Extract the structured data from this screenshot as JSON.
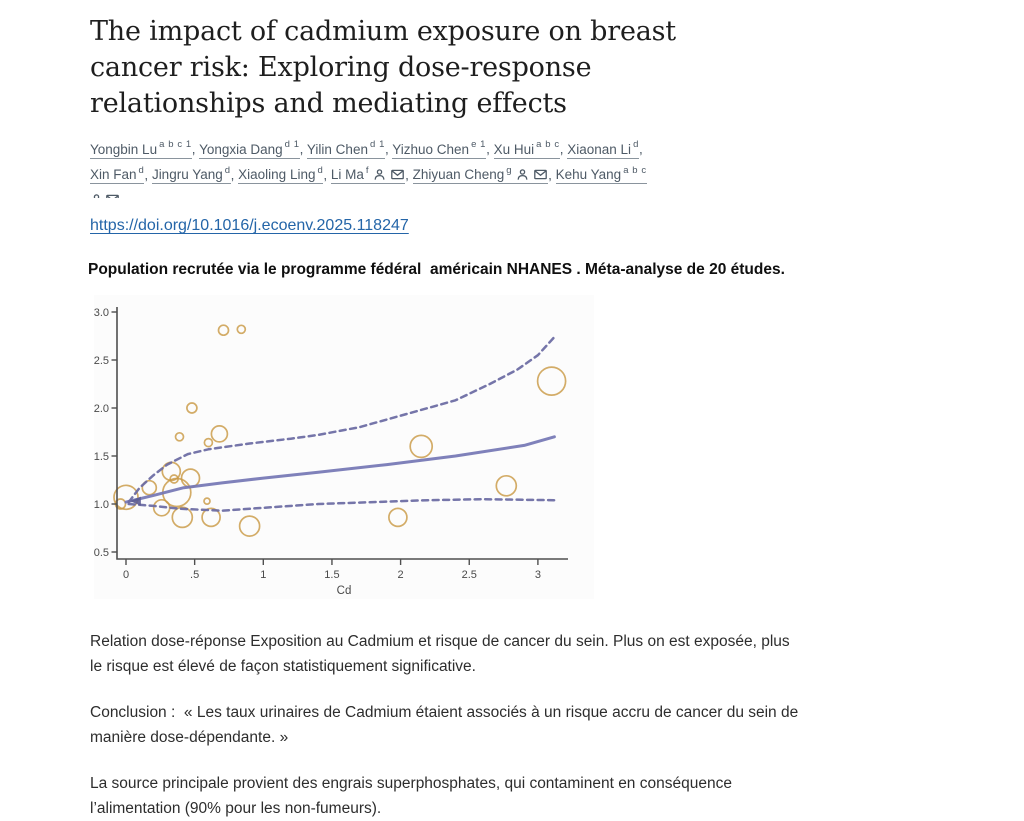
{
  "document": {
    "title": "The impact of cadmium exposure on breast\ncancer risk: Exploring dose-response\nrelationships and mediating effects",
    "doi_link": "https://doi.org/10.1016/j.ecoenv.2025.118247",
    "highlight_line": "Population recrutée via le programme fédéral  américain NHANES . Méta-analyse de 20 études.",
    "paragraphs": {
      "dose_response": "Relation dose-réponse Exposition au Cadmium et risque de cancer du sein. Plus on est exposée, plus\nle risque est élevé de façon statistiquement significative.",
      "conclusion": "Conclusion :  « Les taux urinaires de Cadmium étaient associés à un risque accru de cancer du sein de\nmanière dose-dépendante. »",
      "source": "La source principale provient des engrais superphosphates, qui contaminent en conséquence\nl’alimentation (90% pour les non-fumeurs)."
    }
  },
  "authors": {
    "lines": [
      [
        {
          "name": "Yongbin Lu",
          "sup": "a b c 1",
          "trail": ", "
        },
        {
          "name": "Yongxia Dang",
          "sup": "d 1",
          "trail": ", "
        },
        {
          "name": "Yilin Chen",
          "sup": "d 1",
          "trail": ", "
        },
        {
          "name": "Yizhuo Chen",
          "sup": "e 1",
          "trail": ", "
        },
        {
          "name": "Xu Hui",
          "sup": "a b c",
          "trail": ", "
        },
        {
          "name": "Xiaonan Li",
          "sup": "d",
          "trail": ","
        }
      ],
      [
        {
          "name": "Xin Fan",
          "sup": "d",
          "trail": ", "
        },
        {
          "name": "Jingru Yang",
          "sup": "d",
          "trail": ", "
        },
        {
          "name": "Xiaoling Ling",
          "sup": "d",
          "trail": ", "
        },
        {
          "name": "Li Ma",
          "sup": "f",
          "icons": [
            "person",
            "envelope"
          ],
          "trail": ", "
        },
        {
          "name": "Zhiyuan Cheng",
          "sup": "g",
          "icons": [
            "person",
            "envelope"
          ],
          "trail": ", "
        },
        {
          "name": "Kehu Yang",
          "sup": "a b c",
          "trail": ""
        }
      ]
    ],
    "overflow_icons": [
      "person",
      "envelope"
    ]
  },
  "chart_data": {
    "type": "scatter",
    "subtype": "bubble plot with dose-response fitted curve and 95% CI bands (meta-analysis of 20 studies)",
    "title": "",
    "xlabel": "Cd",
    "ylabel": "",
    "xlim": [
      -0.15,
      3.28
    ],
    "ylim": [
      0.42,
      3.06
    ],
    "grid": false,
    "legend": false,
    "x_ticks": [
      {
        "v": 0,
        "label": "0"
      },
      {
        "v": 0.5,
        "label": ".5"
      },
      {
        "v": 1,
        "label": "1"
      },
      {
        "v": 1.5,
        "label": "1.5"
      },
      {
        "v": 2,
        "label": "2"
      },
      {
        "v": 2.5,
        "label": "2.5"
      },
      {
        "v": 3,
        "label": "3"
      }
    ],
    "y_ticks": [
      {
        "v": 0.5,
        "label": "0.5"
      },
      {
        "v": 1.0,
        "label": "1.0"
      },
      {
        "v": 1.5,
        "label": "1.5"
      },
      {
        "v": 2.0,
        "label": "2.0"
      },
      {
        "v": 2.5,
        "label": "2.5"
      },
      {
        "v": 3.0,
        "label": "3.0"
      }
    ],
    "bubbles": [
      {
        "x": 0.0,
        "y": 1.07,
        "r": 12
      },
      {
        "x": -0.04,
        "y": 1.0,
        "r": 5
      },
      {
        "x": 0.17,
        "y": 1.17,
        "r": 7
      },
      {
        "x": 0.26,
        "y": 0.96,
        "r": 8
      },
      {
        "x": 0.33,
        "y": 1.34,
        "r": 9
      },
      {
        "x": 0.35,
        "y": 1.26,
        "r": 4
      },
      {
        "x": 0.37,
        "y": 1.12,
        "r": 14
      },
      {
        "x": 0.39,
        "y": 1.7,
        "r": 4
      },
      {
        "x": 0.48,
        "y": 2.0,
        "r": 5
      },
      {
        "x": 0.47,
        "y": 1.27,
        "r": 9
      },
      {
        "x": 0.41,
        "y": 0.86,
        "r": 10
      },
      {
        "x": 0.6,
        "y": 1.64,
        "r": 4
      },
      {
        "x": 0.68,
        "y": 1.73,
        "r": 8
      },
      {
        "x": 0.59,
        "y": 1.03,
        "r": 3
      },
      {
        "x": 0.62,
        "y": 0.86,
        "r": 9
      },
      {
        "x": 0.71,
        "y": 2.81,
        "r": 5
      },
      {
        "x": 0.84,
        "y": 2.82,
        "r": 4
      },
      {
        "x": 0.9,
        "y": 0.77,
        "r": 10
      },
      {
        "x": 1.98,
        "y": 0.86,
        "r": 9
      },
      {
        "x": 2.15,
        "y": 1.6,
        "r": 11
      },
      {
        "x": 2.77,
        "y": 1.19,
        "r": 10
      },
      {
        "x": 3.1,
        "y": 2.28,
        "r": 14
      }
    ],
    "series": [
      {
        "name": "fitted dose-response curve",
        "style": "solid",
        "color": "#7577b5",
        "points": [
          [
            0.0,
            1.02
          ],
          [
            0.2,
            1.09
          ],
          [
            0.42,
            1.17
          ],
          [
            0.7,
            1.22
          ],
          [
            1.0,
            1.27
          ],
          [
            1.4,
            1.33
          ],
          [
            1.9,
            1.41
          ],
          [
            2.4,
            1.5
          ],
          [
            2.9,
            1.61
          ],
          [
            3.12,
            1.7
          ]
        ]
      },
      {
        "name": "upper 95% confidence band",
        "style": "dashed",
        "color": "#6b6ba3",
        "points": [
          [
            0.02,
            1.02
          ],
          [
            0.1,
            1.17
          ],
          [
            0.2,
            1.3
          ],
          [
            0.3,
            1.41
          ],
          [
            0.45,
            1.52
          ],
          [
            0.6,
            1.57
          ],
          [
            0.9,
            1.63
          ],
          [
            1.2,
            1.68
          ],
          [
            1.4,
            1.72
          ],
          [
            1.7,
            1.8
          ],
          [
            1.9,
            1.88
          ],
          [
            2.2,
            2.0
          ],
          [
            2.4,
            2.08
          ],
          [
            2.65,
            2.25
          ],
          [
            2.85,
            2.4
          ],
          [
            3.0,
            2.55
          ],
          [
            3.12,
            2.74
          ]
        ]
      },
      {
        "name": "lower 95% confidence band",
        "style": "dashed",
        "color": "#6b6ba3",
        "points": [
          [
            0.02,
            1.0
          ],
          [
            0.2,
            0.98
          ],
          [
            0.4,
            0.95
          ],
          [
            0.7,
            0.93
          ],
          [
            1.0,
            0.96
          ],
          [
            1.4,
            1.0
          ],
          [
            1.8,
            1.02
          ],
          [
            2.2,
            1.04
          ],
          [
            2.6,
            1.05
          ],
          [
            3.12,
            1.04
          ]
        ]
      }
    ],
    "convergence_arrow": {
      "x": 0.05,
      "y": 1.03
    },
    "colors": {
      "bubble_stroke": "#c99a45",
      "axis": "#4f4f4f",
      "tick_label": "#4a4a4a",
      "figure_bg": "#fcfcfc"
    }
  }
}
